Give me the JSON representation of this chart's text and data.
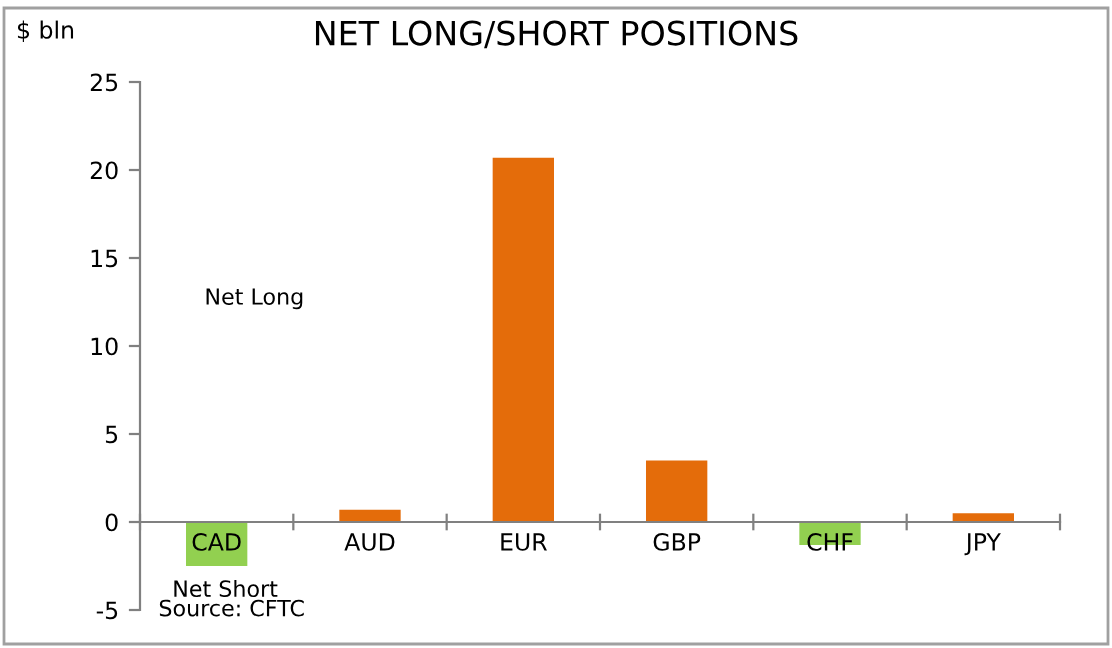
{
  "chart_data": {
    "type": "bar",
    "title": "NET LONG/SHORT POSITIONS",
    "ylabel": "$ bln",
    "categories": [
      "CAD",
      "AUD",
      "EUR",
      "GBP",
      "CHF",
      "JPY"
    ],
    "values": [
      -2.5,
      0.7,
      20.7,
      3.5,
      -1.3,
      0.5
    ],
    "colors": [
      "#92d050",
      "#e46c0a",
      "#e46c0a",
      "#e46c0a",
      "#92d050",
      "#e46c0a"
    ],
    "ylim": [
      -5,
      25
    ],
    "yticks": [
      -5,
      0,
      5,
      10,
      15,
      20,
      25
    ],
    "grid": false,
    "annotations": [
      "Net Long",
      "Net Short",
      "Source: CFTC"
    ]
  }
}
